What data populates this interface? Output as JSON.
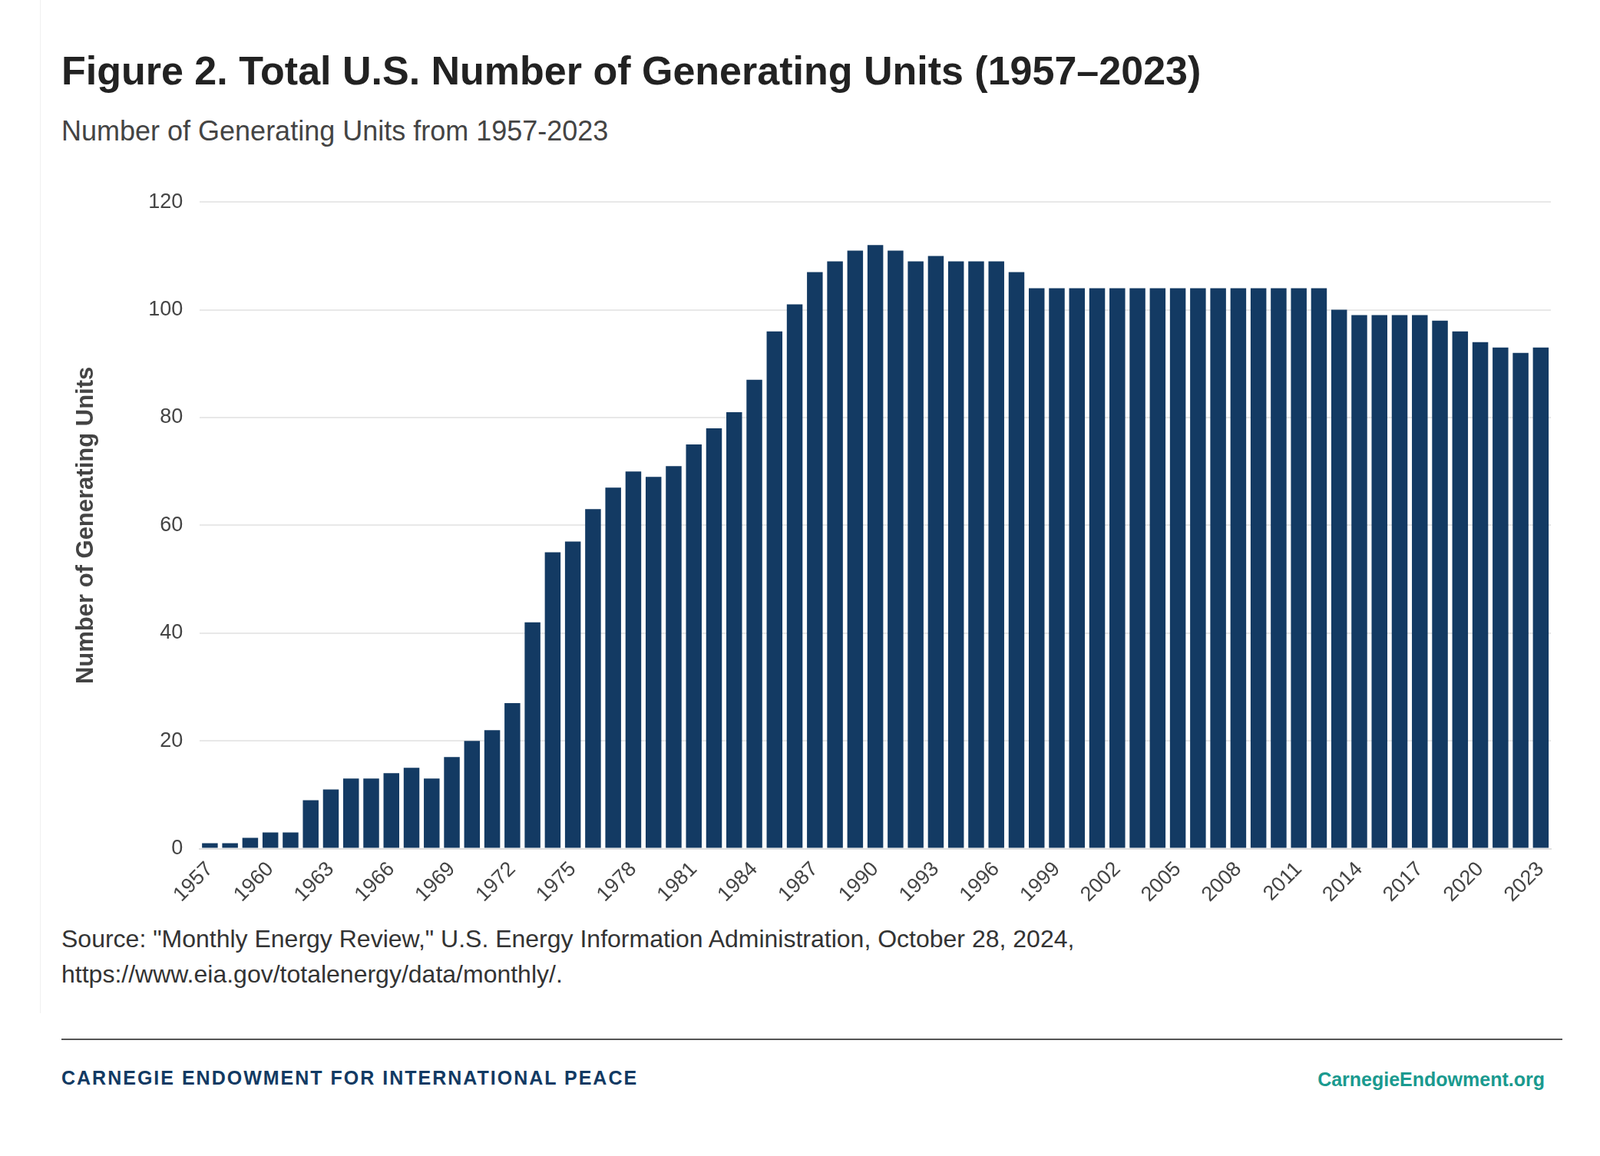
{
  "chart_data": {
    "type": "bar",
    "title": "Figure 2. Total U.S. Number of Generating Units (1957–2023)",
    "subtitle": "Number of Generating Units from 1957-2023",
    "y_label": "Number of Generating Units",
    "categories": [
      "1957",
      null,
      null,
      "1960",
      null,
      null,
      "1963",
      null,
      null,
      "1966",
      null,
      null,
      "1969",
      null,
      null,
      "1972",
      null,
      null,
      "1975",
      null,
      null,
      "1978",
      null,
      null,
      "1981",
      null,
      null,
      "1984",
      null,
      null,
      "1987",
      null,
      null,
      "1990",
      null,
      null,
      "1993",
      null,
      null,
      "1996",
      null,
      null,
      "1999",
      null,
      null,
      "2002",
      null,
      null,
      "2005",
      null,
      null,
      "2008",
      null,
      null,
      "2011",
      null,
      null,
      "2014",
      null,
      null,
      "2017",
      null,
      null,
      "2020",
      null,
      null,
      "2023"
    ],
    "values": [
      1,
      1,
      2,
      3,
      3,
      9,
      11,
      13,
      13,
      14,
      15,
      13,
      17,
      20,
      22,
      27,
      42,
      55,
      57,
      63,
      67,
      70,
      69,
      71,
      75,
      78,
      81,
      87,
      96,
      101,
      107,
      109,
      111,
      112,
      111,
      109,
      110,
      109,
      109,
      109,
      107,
      104,
      104,
      104,
      104,
      104,
      104,
      104,
      104,
      104,
      104,
      104,
      104,
      104,
      104,
      104,
      100,
      99,
      99,
      99,
      99,
      98,
      96,
      94,
      93,
      92,
      93
    ],
    "color": "#133a63",
    "ylim": [
      0,
      120
    ],
    "yticks": [
      0,
      20,
      40,
      60,
      80,
      100,
      120
    ],
    "grid": true,
    "source": [
      "Source: \"Monthly Energy Review,\" U.S. Energy Information Administration, October 28, 2024,",
      "https://www.eia.gov/totalenergy/data/monthly/."
    ],
    "footer": "CARNEGIE ENDOWMENT FOR INTERNATIONAL PEACE",
    "footer_link": "CarnegieEndowment.org"
  }
}
